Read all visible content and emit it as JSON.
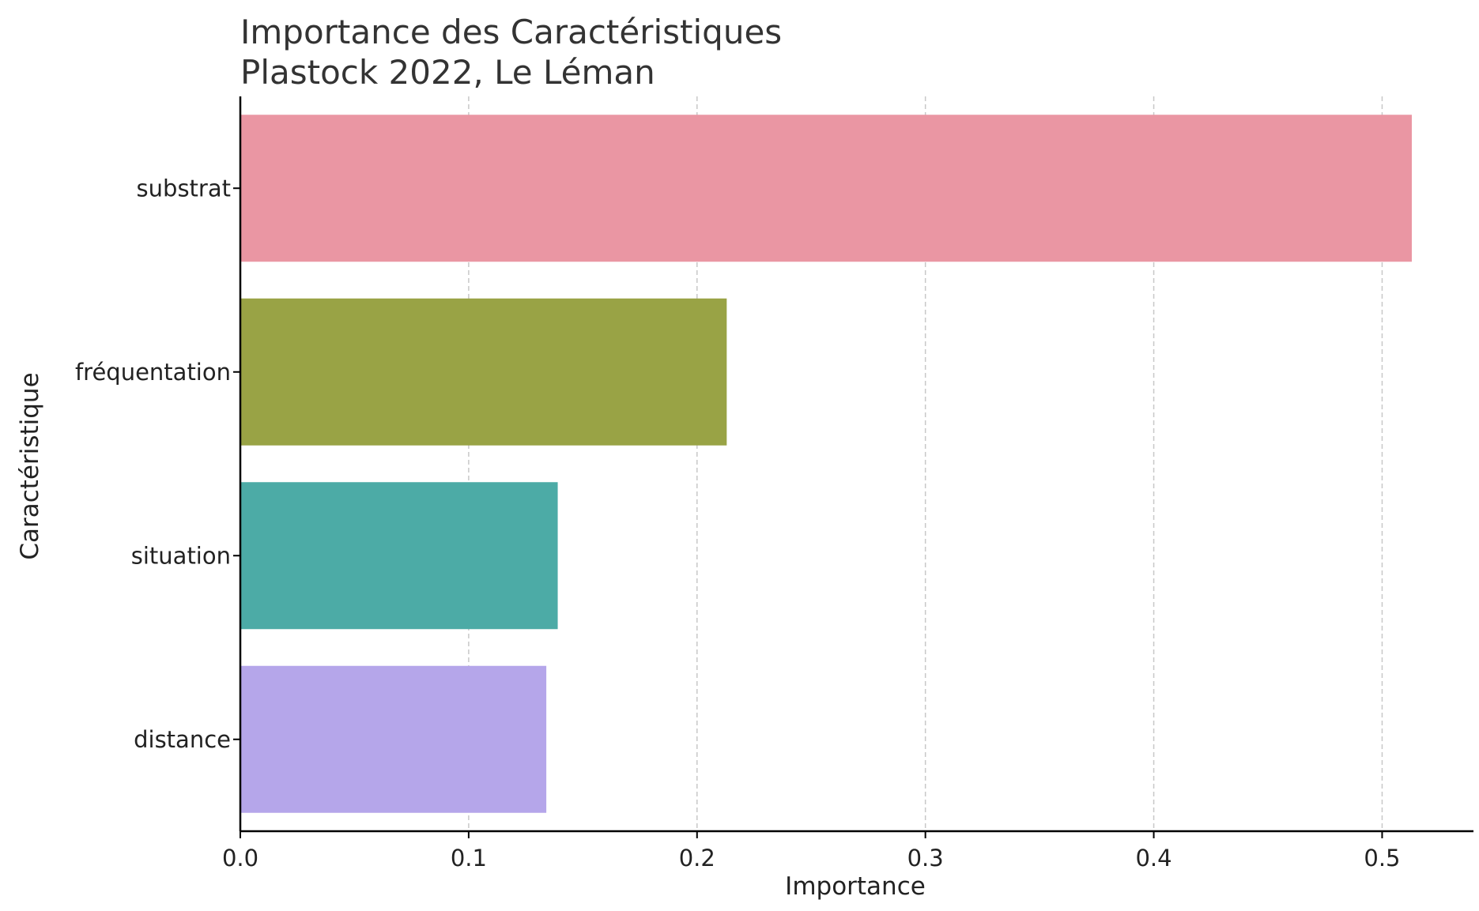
{
  "chart_data": {
    "type": "bar",
    "orientation": "horizontal",
    "title": "Importance des Caractéristiques",
    "subtitle": "Plastock 2022, Le Léman",
    "xlabel": "Importance",
    "ylabel": "Caractéristique",
    "categories": [
      "substrat",
      "fréquentation",
      "situation",
      "distance"
    ],
    "values": [
      0.513,
      0.213,
      0.139,
      0.134
    ],
    "colors": [
      "#ea96a3",
      "#99a345",
      "#4caba6",
      "#b5a6ea"
    ],
    "xlim": [
      0,
      0.54
    ],
    "xticks": [
      0.0,
      0.1,
      0.2,
      0.3,
      0.4,
      0.5
    ],
    "xtick_labels": [
      "0.0",
      "0.1",
      "0.2",
      "0.3",
      "0.4",
      "0.5"
    ],
    "grid": "vertical dashed",
    "legend": "none"
  }
}
